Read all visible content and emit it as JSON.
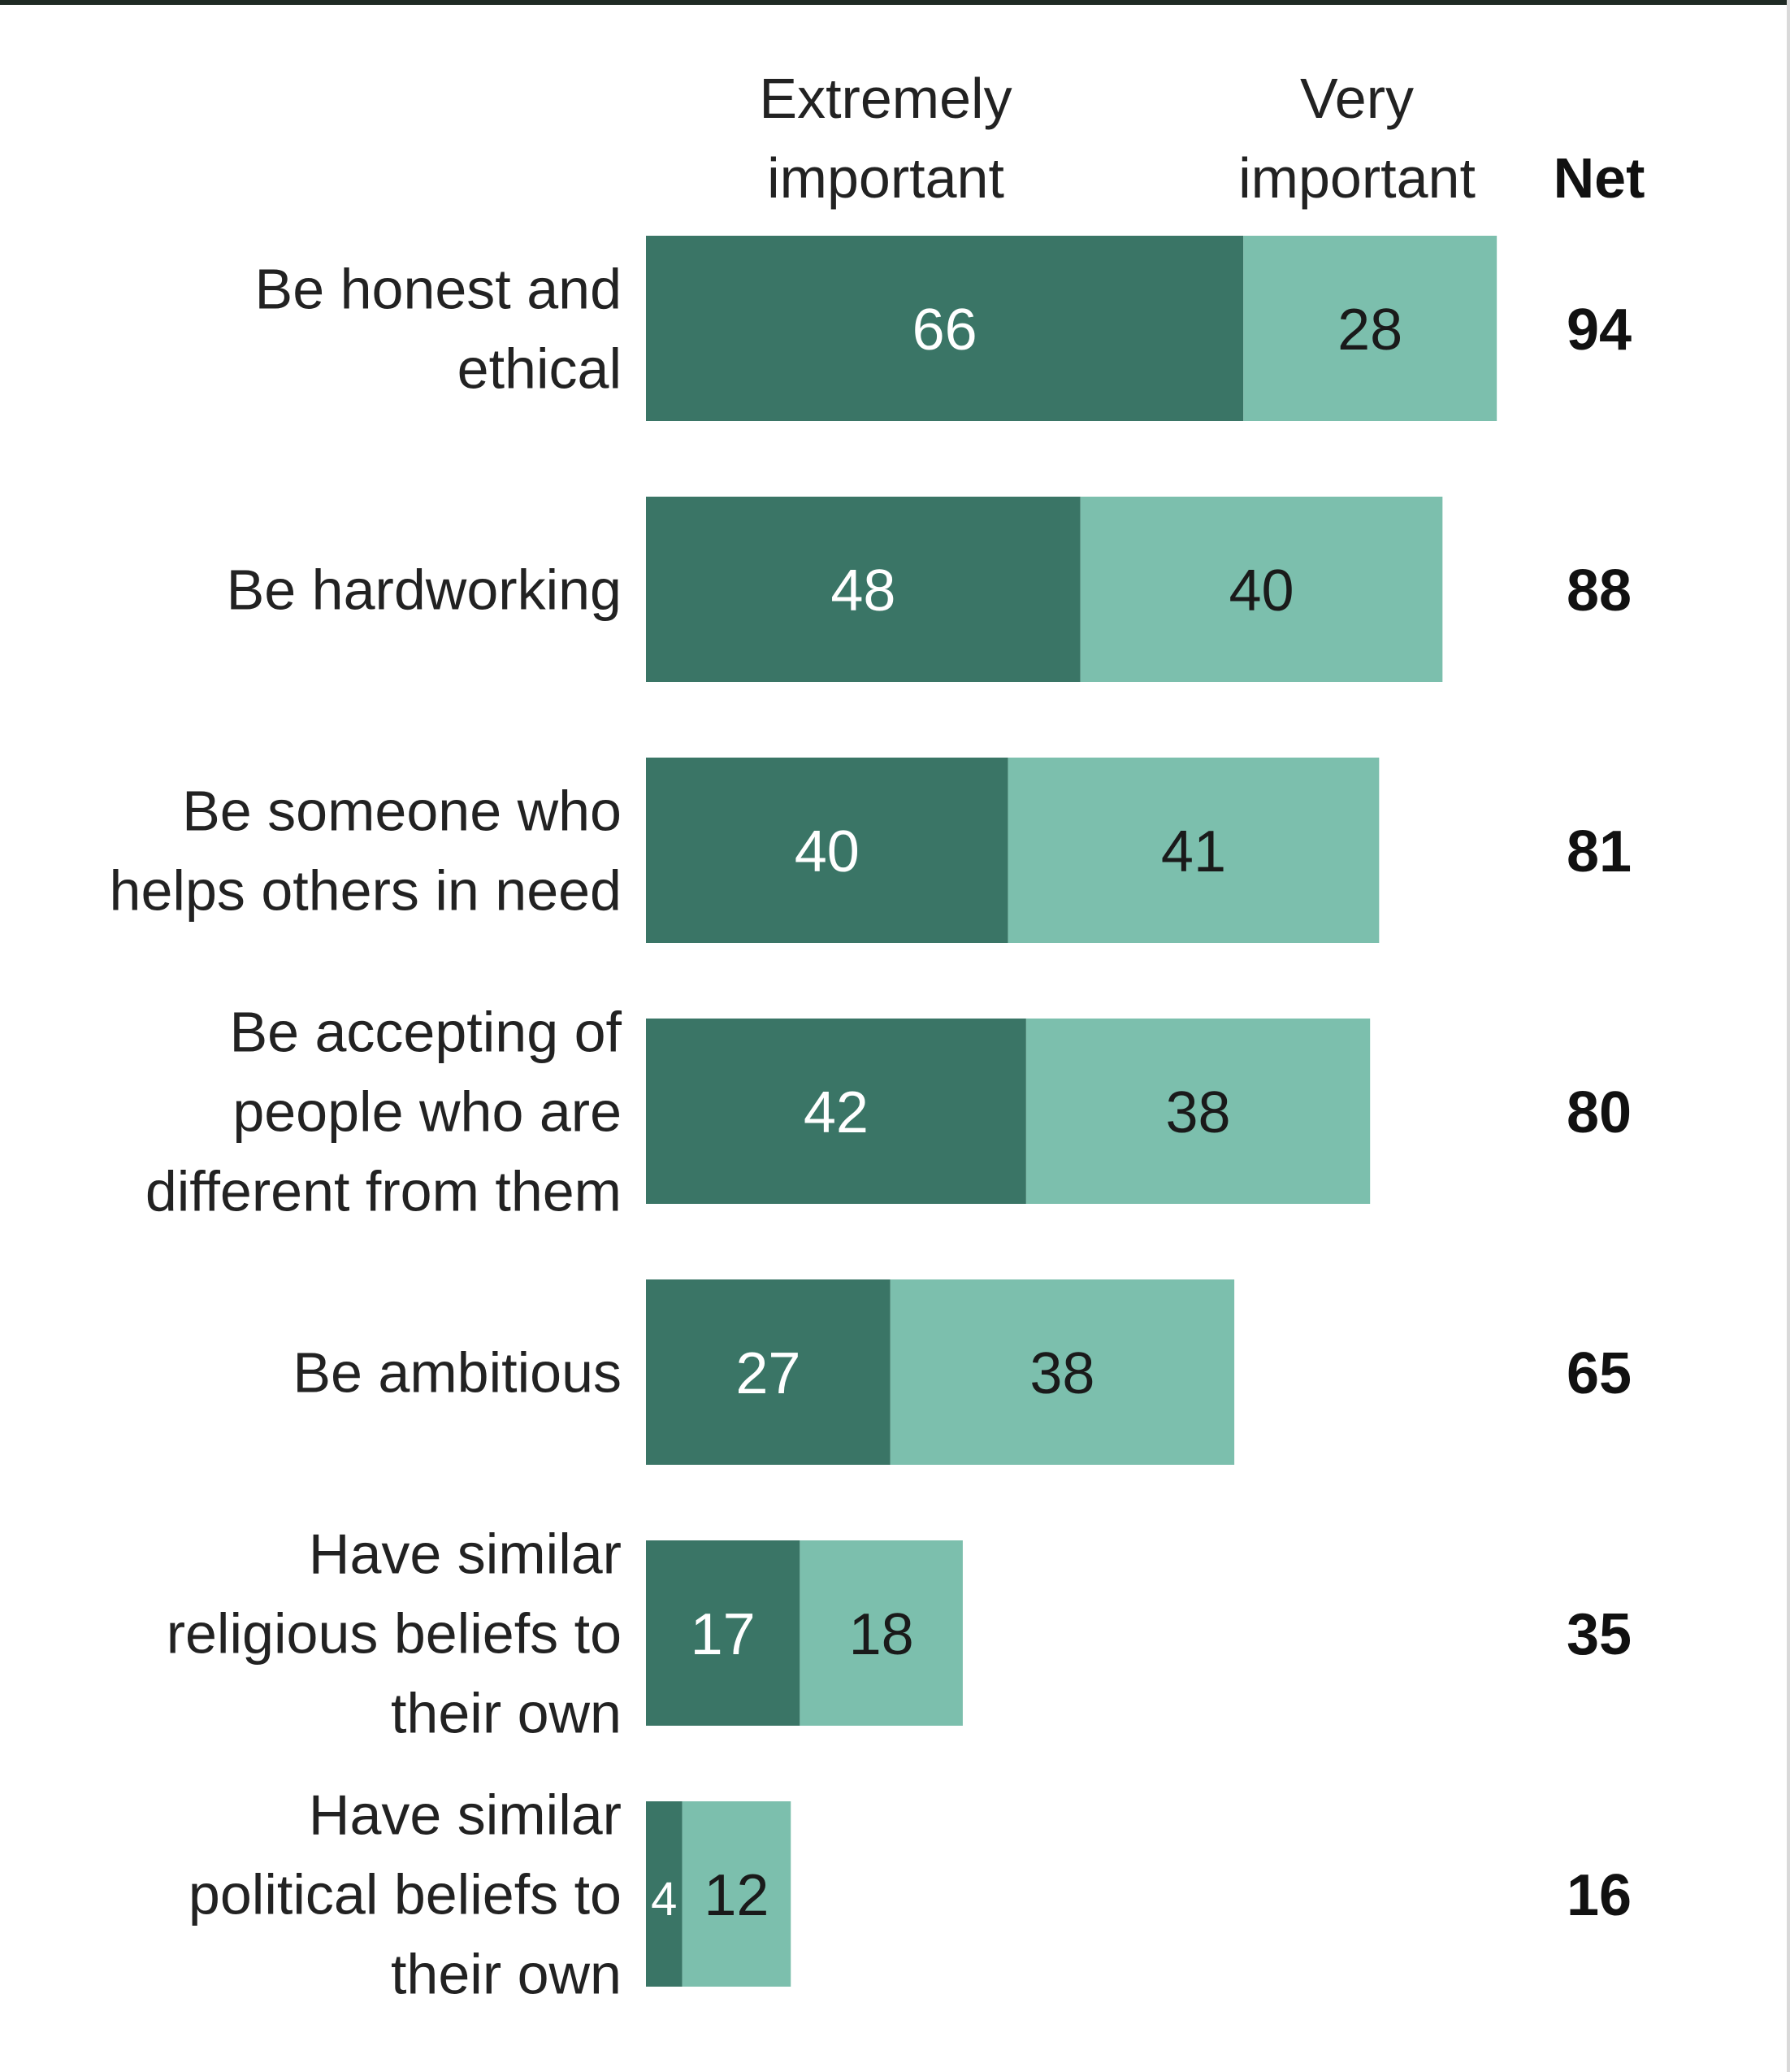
{
  "chart_data": {
    "type": "bar",
    "orientation": "horizontal",
    "stacked": true,
    "legend": {
      "series_headers": [
        [
          "Extremely",
          "important"
        ],
        [
          "Very",
          "important"
        ]
      ],
      "net_header": "Net"
    },
    "categories": [
      [
        "Be honest and",
        "ethical"
      ],
      [
        "Be hardworking"
      ],
      [
        "Be someone who",
        "helps others in need"
      ],
      [
        "Be accepting of",
        "people who are",
        "different from them"
      ],
      [
        "Be ambitious"
      ],
      [
        "Have similar",
        "religious beliefs to",
        "their own"
      ],
      [
        "Have similar",
        "political beliefs to",
        "their own"
      ]
    ],
    "series": [
      {
        "name": "Extremely important",
        "values": [
          66,
          48,
          40,
          42,
          27,
          17,
          4
        ]
      },
      {
        "name": "Very important",
        "values": [
          28,
          40,
          41,
          38,
          38,
          18,
          12
        ]
      }
    ],
    "net": [
      94,
      88,
      81,
      80,
      65,
      35,
      16
    ],
    "xlim": [
      0,
      100
    ],
    "grid": false,
    "colors": {
      "extremely": "#3a7566",
      "very": "#7cbfad",
      "label_on_dark": "#ffffff",
      "label_on_light": "#1a1a1a",
      "text": "#222222"
    }
  }
}
